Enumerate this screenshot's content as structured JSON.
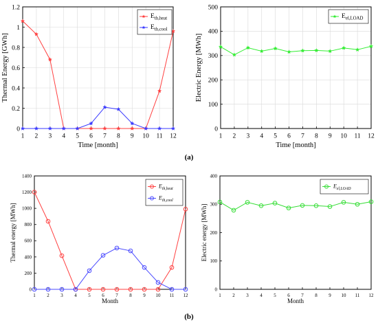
{
  "captions": {
    "a": "(a)",
    "b": "(b)"
  },
  "chart_data": [
    {
      "type": "line",
      "xlabel": "Time [month]",
      "ylabel": "Thermal Energy [GWh]",
      "x": [
        1,
        2,
        3,
        4,
        5,
        6,
        7,
        8,
        9,
        10,
        11,
        12
      ],
      "xticks": [
        "1",
        "2",
        "3",
        "4",
        "5",
        "6",
        "7",
        "8",
        "9",
        "10",
        "11",
        "12"
      ],
      "ylim": [
        0,
        1.2
      ],
      "yticks": [
        "0",
        "0.2",
        "0.4",
        "0.6",
        "0.8",
        "1",
        "1.2"
      ],
      "ytick_values": [
        0,
        0.2,
        0.4,
        0.6,
        0.8,
        1,
        1.2
      ],
      "grid": true,
      "legend_position": "top-right",
      "marker": "star",
      "series": [
        {
          "label_main": "E",
          "label_sub": "th,heat",
          "color": "#ff4040",
          "values": [
            1.06,
            0.93,
            0.68,
            0,
            0,
            0,
            0,
            0,
            0,
            0,
            0.37,
            0.96
          ]
        },
        {
          "label_main": "E",
          "label_sub": "th,cool",
          "color": "#3b3bff",
          "values": [
            0,
            0,
            0,
            0,
            0,
            0.05,
            0.21,
            0.19,
            0.05,
            0,
            0,
            0
          ]
        }
      ]
    },
    {
      "type": "line",
      "xlabel": "Time [month]",
      "ylabel": "Electric Energy [MWh]",
      "x": [
        1,
        2,
        3,
        4,
        5,
        6,
        7,
        8,
        9,
        10,
        11,
        12
      ],
      "xticks": [
        "1",
        "2",
        "3",
        "4",
        "5",
        "6",
        "7",
        "8",
        "9",
        "10",
        "11",
        "12"
      ],
      "ylim": [
        0,
        500
      ],
      "yticks": [
        "0",
        "100",
        "200",
        "300",
        "400",
        "500"
      ],
      "ytick_values": [
        0,
        100,
        200,
        300,
        400,
        500
      ],
      "grid": true,
      "legend_position": "top-right",
      "marker": "star",
      "series": [
        {
          "label_main": "E",
          "label_sub": "el,LOAD",
          "color": "#33ee33",
          "values": [
            336,
            303,
            332,
            318,
            329,
            315,
            320,
            321,
            318,
            331,
            324,
            338
          ]
        }
      ]
    },
    {
      "type": "line",
      "xlabel": "Month",
      "ylabel": "Thermal energy [MWh]",
      "x": [
        1,
        2,
        3,
        4,
        5,
        6,
        7,
        8,
        9,
        10,
        11,
        12
      ],
      "xticks": [
        "1",
        "2",
        "3",
        "4",
        "5",
        "6",
        "7",
        "8",
        "9",
        "10",
        "11",
        "12"
      ],
      "ylim": [
        0,
        1400
      ],
      "yticks": [
        "0",
        "200",
        "400",
        "600",
        "800",
        "1000",
        "1200",
        "1400"
      ],
      "ytick_values": [
        0,
        200,
        400,
        600,
        800,
        1000,
        1200,
        1400
      ],
      "grid": false,
      "legend_position": "top-right",
      "marker": "circle",
      "series": [
        {
          "label_main": "E",
          "label_sub": "th,heat",
          "color": "#ff4040",
          "values": [
            1200,
            840,
            415,
            0,
            0,
            0,
            0,
            0,
            0,
            0,
            270,
            990
          ]
        },
        {
          "label_main": "E",
          "label_sub": "th,cool",
          "color": "#4a4aff",
          "values": [
            0,
            0,
            0,
            0,
            230,
            420,
            510,
            475,
            270,
            85,
            0,
            0
          ]
        }
      ]
    },
    {
      "type": "line",
      "xlabel": "Month",
      "ylabel": "Electric energy [MWh]",
      "x": [
        1,
        2,
        3,
        4,
        5,
        6,
        7,
        8,
        9,
        10,
        11,
        12
      ],
      "xticks": [
        "1",
        "2",
        "3",
        "4",
        "5",
        "6",
        "7",
        "8",
        "9",
        "10",
        "11",
        "12"
      ],
      "ylim": [
        0,
        400
      ],
      "yticks": [
        "0",
        "100",
        "200",
        "300",
        "400"
      ],
      "ytick_values": [
        0,
        100,
        200,
        300,
        400
      ],
      "grid": false,
      "legend_position": "top-right",
      "marker": "circle",
      "series": [
        {
          "label_main": "E",
          "label_sub": "el,LOAD",
          "color": "#33dd33",
          "values": [
            308,
            279,
            307,
            295,
            304,
            287,
            296,
            295,
            292,
            307,
            300,
            309
          ]
        }
      ]
    }
  ]
}
